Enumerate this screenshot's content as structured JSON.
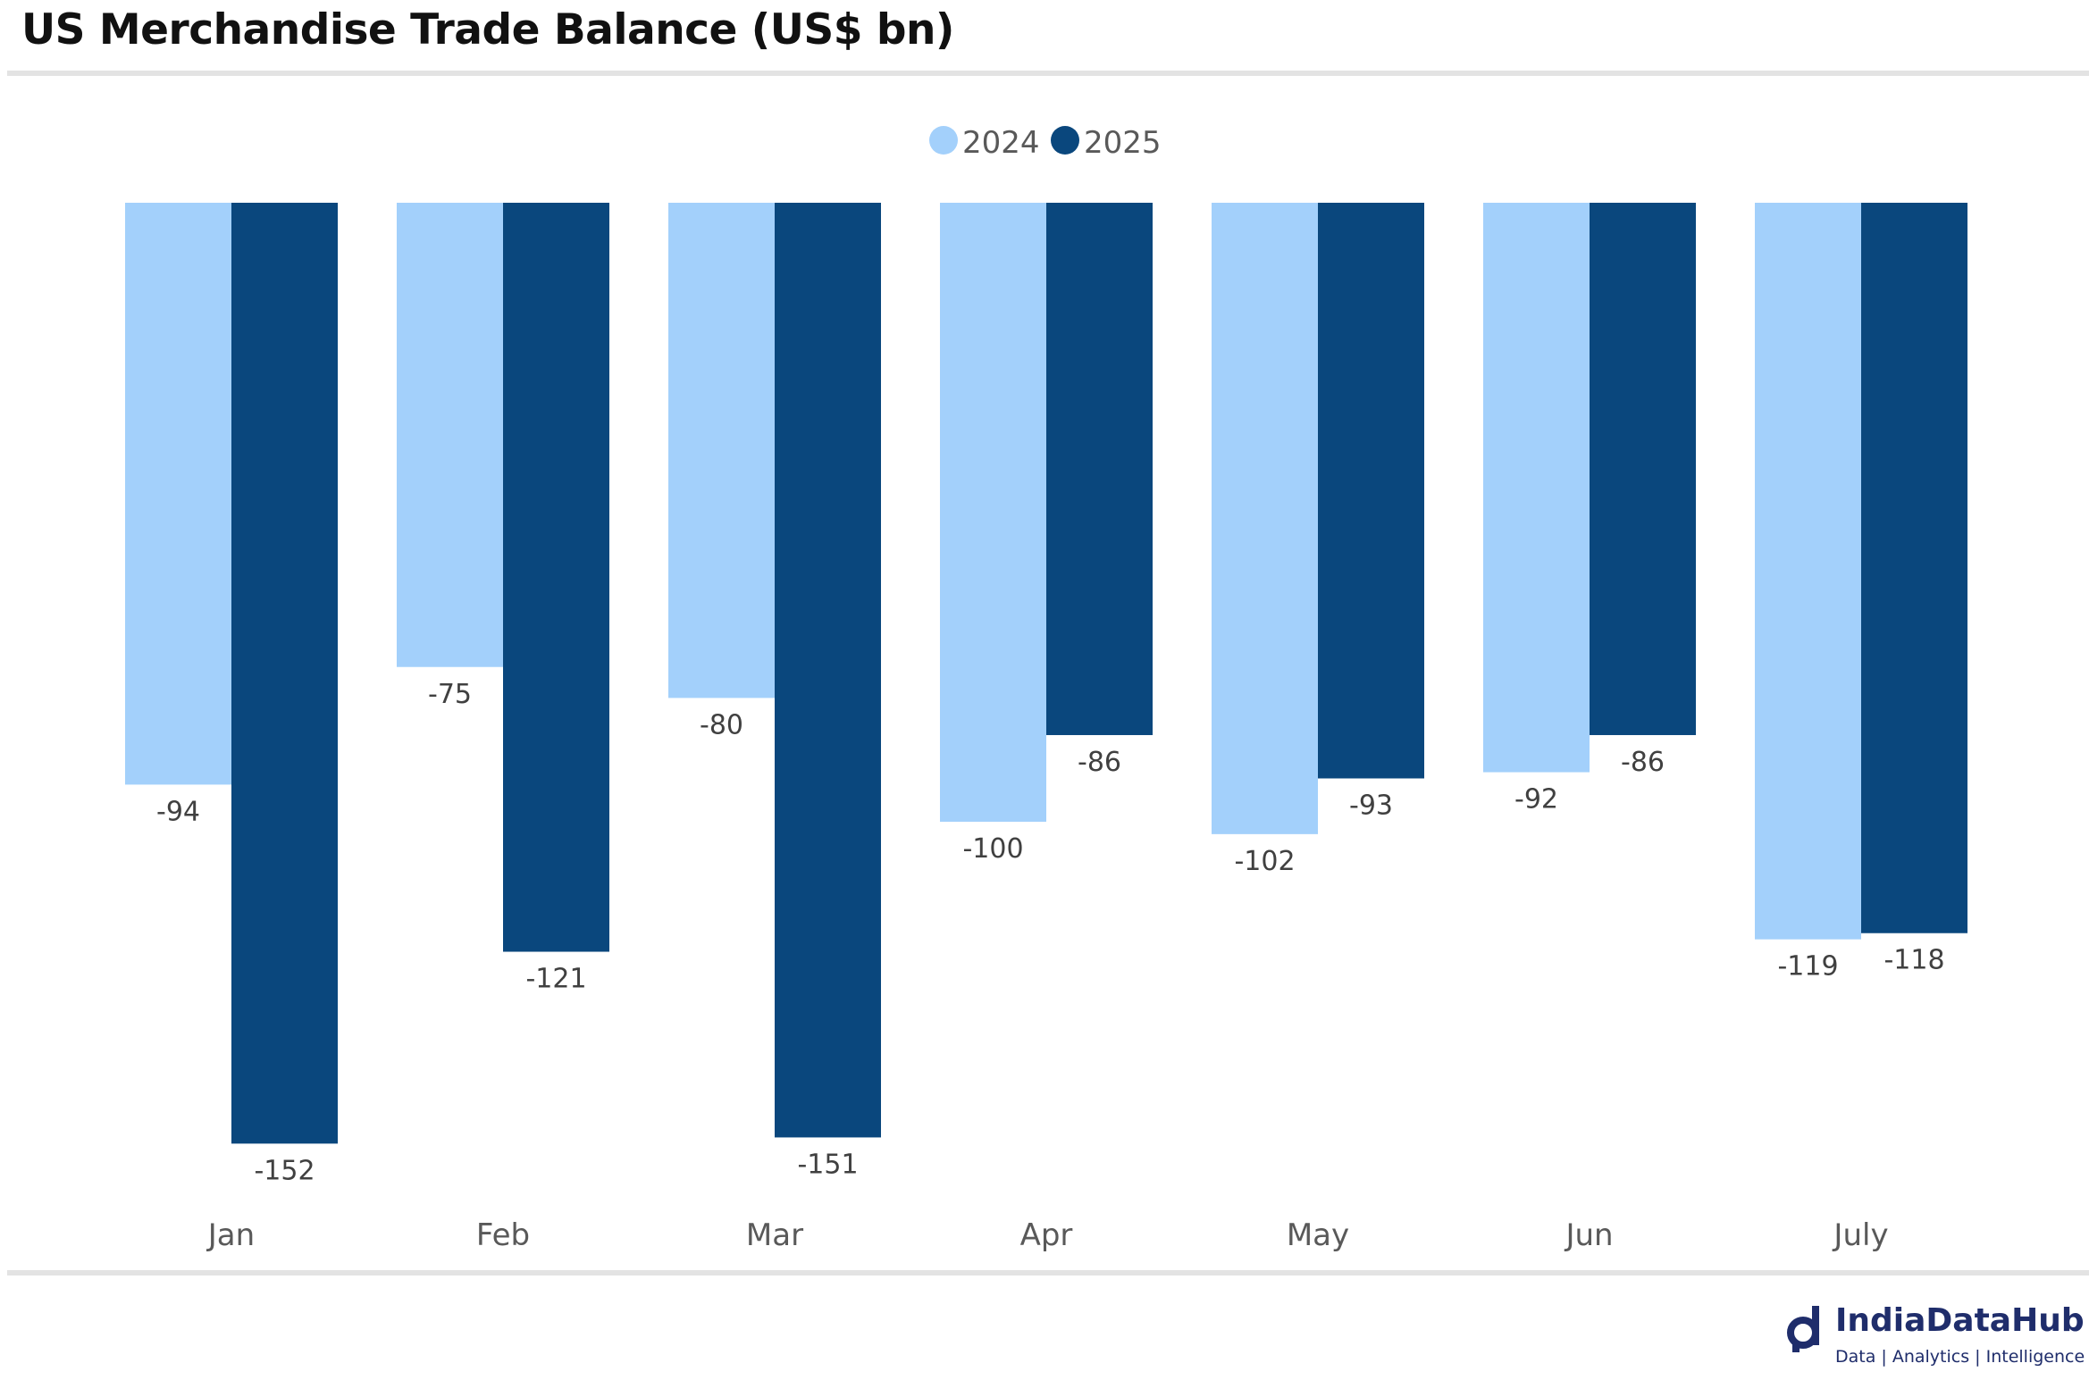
{
  "colors": {
    "series_2024": "#a3d0fb",
    "series_2025": "#0a477d",
    "brand": "#1f2d6b"
  },
  "chart_data": {
    "type": "bar",
    "title": "US Merchandise Trade Balance (US$ bn)",
    "categories": [
      "Jan",
      "Feb",
      "Mar",
      "Apr",
      "May",
      "Jun",
      "July"
    ],
    "series": [
      {
        "name": "2024",
        "values": [
          -94,
          -75,
          -80,
          -100,
          -102,
          -92,
          -119
        ]
      },
      {
        "name": "2025",
        "values": [
          -152,
          -121,
          -151,
          -86,
          -93,
          -86,
          -118
        ]
      }
    ],
    "xlabel": "",
    "ylabel": "",
    "ylim": [
      -160,
      0
    ],
    "grid": false,
    "legend": "top-center"
  },
  "branding": {
    "logo_icon": "magnifier-d-icon",
    "name": "IndiaDataHub",
    "tagline": "Data | Analytics | Intelligence"
  }
}
